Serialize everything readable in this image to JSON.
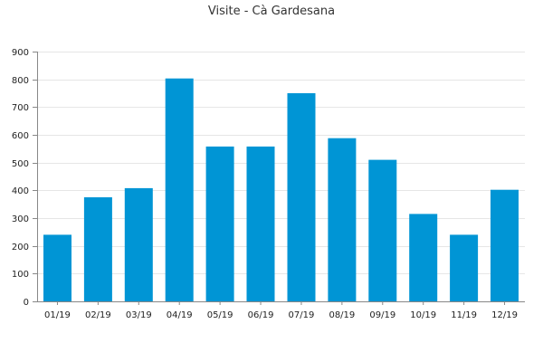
{
  "chart_data": {
    "type": "bar",
    "title": "Visite - Cà Gardesana",
    "categories": [
      "01/19",
      "02/19",
      "03/19",
      "04/19",
      "05/19",
      "06/19",
      "07/19",
      "08/19",
      "09/19",
      "10/19",
      "11/19",
      "12/19"
    ],
    "values": [
      240,
      375,
      408,
      803,
      558,
      558,
      750,
      588,
      510,
      315,
      240,
      402
    ],
    "ylim": [
      0,
      900
    ],
    "yticks": [
      0,
      100,
      200,
      300,
      400,
      500,
      600,
      700,
      800,
      900
    ],
    "grid": true,
    "legend": "none",
    "bar_color": "#0095d5",
    "grid_color": "#e6e6e6",
    "axis_color": "#888888"
  }
}
